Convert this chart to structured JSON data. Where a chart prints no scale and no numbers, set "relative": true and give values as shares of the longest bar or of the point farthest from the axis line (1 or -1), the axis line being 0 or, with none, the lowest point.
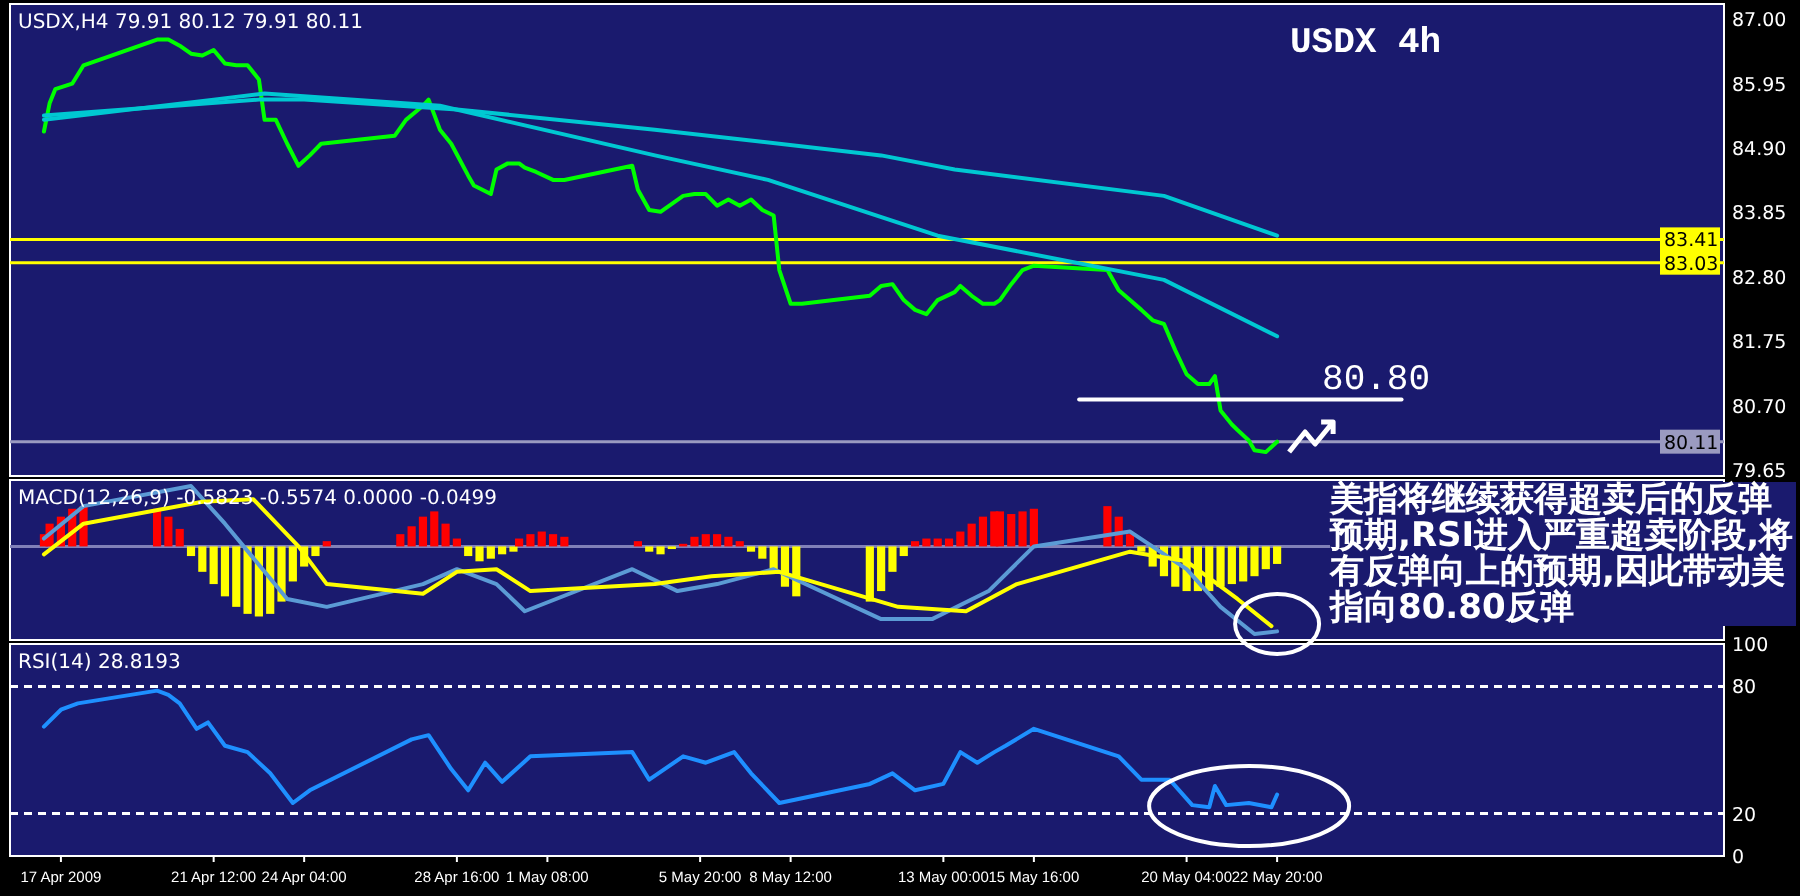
{
  "chart_data": [
    {
      "type": "line",
      "title": "USDX 4h",
      "tick_labels": "y",
      "xlim": [
        "2009-04-15T12:00",
        "2009-06-05T00:00"
      ],
      "ylim": [
        79.55,
        87.25
      ],
      "yticks": [
        {
          "value": 87,
          "label": "87.00"
        },
        {
          "value": 85.95,
          "label": "85.95"
        },
        {
          "value": 84.9,
          "label": "84.90"
        },
        {
          "value": 83.85,
          "label": "83.85"
        },
        {
          "value": 82.8,
          "label": "82.80"
        },
        {
          "value": 81.75,
          "label": "81.75"
        },
        {
          "value": 80.7,
          "label": "80.70"
        },
        {
          "value": 79.65,
          "label": "79.65"
        }
      ],
      "ref_lines": [
        {
          "axis": "y",
          "value": 83.41,
          "label": "83.41",
          "color": "#ffff00"
        },
        {
          "axis": "y",
          "value": 83.03,
          "label": "83.03",
          "color": "#ffff00"
        },
        {
          "axis": "y",
          "value": 80.11,
          "label": "80.11",
          "color": "#9a9ac0"
        }
      ],
      "series": [
        {
          "color": "#00ff00",
          "x": [
            "2009-04-16T12:00",
            "2009-04-16T16:00",
            "2009-04-16T20:00",
            "2009-04-17T08:00",
            "2009-04-17T16:00",
            "2009-04-19T20:00",
            "2009-04-20T04:00",
            "2009-04-20T12:00",
            "2009-04-20T20:00",
            "2009-04-21T04:00",
            "2009-04-21T12:00",
            "2009-04-21T20:00",
            "2009-04-22T04:00",
            "2009-04-22T12:00",
            "2009-04-22T20:00",
            "2009-04-23T00:00",
            "2009-04-23T08:00",
            "2009-04-23T16:00",
            "2009-04-24T00:00",
            "2009-04-24T08:00",
            "2009-04-24T16:00",
            "2009-04-26T20:00",
            "2009-04-27T04:00",
            "2009-04-27T16:00",
            "2009-04-27T20:00",
            "2009-04-28T04:00",
            "2009-04-28T12:00",
            "2009-04-29T00:00",
            "2009-04-29T04:00",
            "2009-04-29T16:00",
            "2009-04-29T20:00",
            "2009-04-30T04:00",
            "2009-04-30T12:00",
            "2009-04-30T16:00",
            "2009-05-01T00:00",
            "2009-05-01T12:00",
            "2009-05-01T20:00",
            "2009-05-03T20:00",
            "2009-05-04T00:00",
            "2009-05-04T08:00",
            "2009-05-04T16:00",
            "2009-05-05T00:00",
            "2009-05-05T08:00",
            "2009-05-05T16:00",
            "2009-05-06T00:00",
            "2009-05-06T08:00",
            "2009-05-06T16:00",
            "2009-05-07T00:00",
            "2009-05-07T08:00",
            "2009-05-07T16:00",
            "2009-05-08T00:00",
            "2009-05-08T04:00",
            "2009-05-08T12:00",
            "2009-05-08T20:00",
            "2009-05-10T20:00",
            "2009-05-11T04:00",
            "2009-05-11T12:00",
            "2009-05-11T20:00",
            "2009-05-12T04:00",
            "2009-05-12T12:00",
            "2009-05-12T20:00",
            "2009-05-13T08:00",
            "2009-05-13T12:00",
            "2009-05-13T20:00",
            "2009-05-14T04:00",
            "2009-05-14T12:00",
            "2009-05-14T16:00",
            "2009-05-15T00:00",
            "2009-05-15T08:00",
            "2009-05-15T16:00",
            "2009-05-17T20:00",
            "2009-05-18T04:00",
            "2009-05-18T12:00",
            "2009-05-18T20:00",
            "2009-05-19T04:00",
            "2009-05-19T12:00",
            "2009-05-19T20:00",
            "2009-05-20T04:00",
            "2009-05-20T12:00",
            "2009-05-20T20:00",
            "2009-05-21T00:00",
            "2009-05-21T04:00",
            "2009-05-21T12:00",
            "2009-05-21T16:00",
            "2009-05-22T00:00",
            "2009-05-22T04:00",
            "2009-05-22T12:00",
            "2009-05-22T20:00"
          ],
          "values": [
            85.17,
            85.63,
            85.86,
            85.95,
            86.25,
            86.67,
            86.67,
            86.57,
            86.44,
            86.41,
            86.5,
            86.28,
            86.25,
            86.25,
            86.02,
            85.36,
            85.36,
            84.97,
            84.61,
            84.78,
            84.97,
            85.1,
            85.36,
            85.59,
            85.69,
            85.2,
            84.97,
            84.45,
            84.29,
            84.15,
            84.55,
            84.65,
            84.65,
            84.58,
            84.51,
            84.38,
            84.38,
            84.61,
            84.22,
            83.89,
            83.86,
            83.99,
            84.12,
            84.15,
            84.15,
            83.96,
            84.06,
            83.96,
            84.06,
            83.89,
            83.8,
            82.91,
            82.36,
            82.36,
            82.49,
            82.65,
            82.68,
            82.42,
            82.26,
            82.19,
            82.42,
            82.55,
            82.65,
            82.49,
            82.36,
            82.36,
            82.42,
            82.68,
            82.91,
            82.98,
            82.91,
            82.58,
            82.42,
            82.26,
            82.09,
            82.03,
            81.6,
            81.21,
            81.05,
            81.05,
            81.18,
            80.62,
            80.39,
            80.3,
            80.13,
            79.97,
            79.94,
            80.11
          ]
        },
        {
          "color": "#00c8d2",
          "x": [
            "2009-04-16T12:00",
            "2009-04-22T20:00",
            "2009-04-24T04:00",
            "2009-04-28T16:00",
            "2009-05-04T12:00",
            "2009-05-11T04:00",
            "2009-05-13T08:00",
            "2009-05-19T12:00",
            "2009-05-22T20:00"
          ],
          "values": [
            85.43,
            85.69,
            85.69,
            85.53,
            85.2,
            84.78,
            84.55,
            84.12,
            83.47
          ]
        },
        {
          "color": "#00c8d2",
          "x": [
            "2009-04-16T12:00",
            "2009-04-21T12:00",
            "2009-04-23T00:00",
            "2009-04-28T04:00",
            "2009-05-04T12:00",
            "2009-05-07T20:00",
            "2009-05-12T20:00",
            "2009-05-19T12:00",
            "2009-05-22T20:00"
          ],
          "values": [
            85.36,
            85.69,
            85.79,
            85.59,
            84.78,
            84.38,
            83.47,
            82.75,
            81.83
          ]
        },
        {
          "color": "#ffffff",
          "x": [
            "2009-05-17T00:00",
            "2009-05-26T12:00"
          ],
          "values": [
            80.8,
            80.8
          ]
        }
      ],
      "annotations": [
        "USDX,H4  79.91 80.12 79.91 80.11",
        {
          "text": "80.80",
          "x": "2009-05-25T18:00",
          "y": 80.8
        },
        "美指将继续获得超卖后的反弹预期,RSI进入严重超卖阶段,将有反弹向上的预期,因此带动美指向80.80反弹"
      ]
    },
    {
      "type": "bar",
      "relative": true,
      "tick_labels": false,
      "ref_lines": [
        {
          "axis": "y",
          "value": 0,
          "color": "#8080b8"
        }
      ],
      "xlim": [
        "2009-04-15T12:00",
        "2009-06-05T00:00"
      ],
      "series": [
        {
          "x": [
            "2009-04-16T12:00",
            "2009-04-16T16:00",
            "2009-04-17T00:00",
            "2009-04-17T08:00",
            "2009-04-17T16:00",
            "2009-04-19T20:00",
            "2009-04-20T04:00",
            "2009-04-20T12:00",
            "2009-04-20T20:00",
            "2009-04-21T04:00",
            "2009-04-21T12:00",
            "2009-04-21T20:00",
            "2009-04-22T04:00",
            "2009-04-22T12:00",
            "2009-04-22T20:00",
            "2009-04-23T04:00",
            "2009-04-23T12:00",
            "2009-04-23T20:00",
            "2009-04-24T04:00",
            "2009-04-24T12:00",
            "2009-04-24T20:00",
            "2009-04-27T00:00",
            "2009-04-27T08:00",
            "2009-04-27T16:00",
            "2009-04-28T00:00",
            "2009-04-28T08:00",
            "2009-04-28T16:00",
            "2009-04-29T00:00",
            "2009-04-29T08:00",
            "2009-04-29T16:00",
            "2009-04-30T00:00",
            "2009-04-30T08:00",
            "2009-04-30T12:00",
            "2009-04-30T20:00",
            "2009-05-01T04:00",
            "2009-05-01T12:00",
            "2009-05-01T20:00",
            "2009-05-04T00:00",
            "2009-05-04T08:00",
            "2009-05-04T16:00",
            "2009-05-05T00:00",
            "2009-05-05T08:00",
            "2009-05-05T16:00",
            "2009-05-06T00:00",
            "2009-05-06T08:00",
            "2009-05-06T16:00",
            "2009-05-07T00:00",
            "2009-05-07T08:00",
            "2009-05-07T16:00",
            "2009-05-08T00:00",
            "2009-05-08T08:00",
            "2009-05-08T16:00",
            "2009-05-10T20:00",
            "2009-05-11T04:00",
            "2009-05-11T12:00",
            "2009-05-11T20:00",
            "2009-05-12T04:00",
            "2009-05-12T12:00",
            "2009-05-12T20:00",
            "2009-05-13T04:00",
            "2009-05-13T12:00",
            "2009-05-13T20:00",
            "2009-05-14T04:00",
            "2009-05-14T12:00",
            "2009-05-14T16:00",
            "2009-05-15T00:00",
            "2009-05-15T08:00",
            "2009-05-15T16:00",
            "2009-05-17T20:00",
            "2009-05-18T04:00",
            "2009-05-18T12:00",
            "2009-05-18T20:00",
            "2009-05-19T04:00",
            "2009-05-19T12:00",
            "2009-05-19T20:00",
            "2009-05-20T04:00",
            "2009-05-20T12:00",
            "2009-05-20T20:00",
            "2009-05-21T04:00",
            "2009-05-21T12:00",
            "2009-05-21T20:00",
            "2009-05-22T04:00",
            "2009-05-22T12:00",
            "2009-05-22T20:00"
          ],
          "values": [
            0.14,
            0.26,
            0.34,
            0.43,
            0.46,
            0.43,
            0.34,
            0.2,
            -0.11,
            -0.29,
            -0.43,
            -0.57,
            -0.69,
            -0.77,
            -0.8,
            -0.77,
            -0.63,
            -0.4,
            -0.23,
            -0.11,
            0.06,
            0.14,
            0.23,
            0.34,
            0.4,
            0.26,
            0.09,
            -0.11,
            -0.17,
            -0.14,
            -0.09,
            -0.06,
            0.09,
            0.14,
            0.17,
            0.14,
            0.11,
            0.06,
            -0.06,
            -0.09,
            -0.03,
            0.03,
            0.11,
            0.14,
            0.14,
            0.11,
            0.06,
            -0.06,
            -0.14,
            -0.29,
            -0.46,
            -0.57,
            -0.63,
            -0.51,
            -0.29,
            -0.11,
            0.06,
            0.09,
            0.09,
            0.09,
            0.17,
            0.26,
            0.34,
            0.4,
            0.4,
            0.37,
            0.4,
            0.43,
            0.46,
            0.34,
            0.14,
            -0.06,
            -0.23,
            -0.34,
            -0.46,
            -0.51,
            -0.51,
            -0.51,
            -0.46,
            -0.43,
            -0.4,
            -0.34,
            -0.26,
            -0.2
          ],
          "colors": [
            "#ff0000",
            "#ff0000",
            "#ff0000",
            "#ff0000",
            "#ff0000",
            "#ff0000",
            "#ff0000",
            "#ff0000",
            "#ffff00",
            "#ffff00",
            "#ffff00",
            "#ffff00",
            "#ffff00",
            "#ffff00",
            "#ffff00",
            "#ffff00",
            "#ffff00",
            "#ffff00",
            "#ffff00",
            "#ffff00",
            "#ff0000",
            "#ff0000",
            "#ff0000",
            "#ff0000",
            "#ff0000",
            "#ff0000",
            "#ff0000",
            "#ffff00",
            "#ffff00",
            "#ffff00",
            "#ffff00",
            "#ffff00",
            "#ff0000",
            "#ff0000",
            "#ff0000",
            "#ff0000",
            "#ff0000",
            "#ff0000",
            "#ffff00",
            "#ffff00",
            "#ffff00",
            "#ff0000",
            "#ff0000",
            "#ff0000",
            "#ff0000",
            "#ff0000",
            "#ff0000",
            "#ffff00",
            "#ffff00",
            "#ffff00",
            "#ffff00",
            "#ffff00",
            "#ffff00",
            "#ffff00",
            "#ffff00",
            "#ffff00",
            "#ff0000",
            "#ff0000",
            "#ff0000",
            "#ff0000",
            "#ff0000",
            "#ff0000",
            "#ff0000",
            "#ff0000",
            "#ff0000",
            "#ff0000",
            "#ff0000",
            "#ff0000",
            "#ff0000",
            "#ff0000",
            "#ff0000",
            "#ffff00",
            "#ffff00",
            "#ffff00",
            "#ffff00",
            "#ffff00",
            "#ffff00",
            "#ffff00",
            "#ffff00",
            "#ffff00",
            "#ffff00",
            "#ffff00",
            "#ffff00",
            "#ffff00"
          ]
        },
        {
          "type": "line",
          "color": "#5b9bd5",
          "x": [
            "2009-04-16T12:00",
            "2009-04-17T16:00",
            "2009-04-20T20:00",
            "2009-04-21T20:00",
            "2009-04-23T16:00",
            "2009-04-24T20:00",
            "2009-04-27T16:00",
            "2009-04-28T16:00",
            "2009-04-29T20:00",
            "2009-04-30T16:00",
            "2009-05-03T20:00",
            "2009-05-05T04:00",
            "2009-05-06T08:00",
            "2009-05-08T00:00",
            "2009-05-11T04:00",
            "2009-05-12T16:00",
            "2009-05-14T08:00",
            "2009-05-15T16:00",
            "2009-05-18T12:00",
            "2009-05-20T04:00",
            "2009-05-21T04:00",
            "2009-05-22T04:00",
            "2009-05-22T20:00"
          ],
          "values": [
            0.09,
            0.46,
            0.69,
            0.26,
            -0.6,
            -0.69,
            -0.43,
            -0.26,
            -0.43,
            -0.74,
            -0.26,
            -0.51,
            -0.43,
            -0.26,
            -0.83,
            -0.83,
            -0.51,
            0,
            0.17,
            -0.26,
            -0.69,
            -1,
            -0.97
          ]
        },
        {
          "type": "line",
          "color": "#ffff00",
          "x": [
            "2009-04-16T12:00",
            "2009-04-17T16:00",
            "2009-04-21T04:00",
            "2009-04-22T16:00",
            "2009-04-24T00:00",
            "2009-04-24T20:00",
            "2009-04-27T16:00",
            "2009-04-28T16:00",
            "2009-04-29T20:00",
            "2009-04-30T20:00",
            "2009-05-04T12:00",
            "2009-05-06T04:00",
            "2009-05-08T04:00",
            "2009-05-11T16:00",
            "2009-05-13T16:00",
            "2009-05-15T04:00",
            "2009-05-18T12:00",
            "2009-05-20T04:00",
            "2009-05-21T16:00",
            "2009-05-22T16:00"
          ],
          "values": [
            -0.09,
            0.26,
            0.51,
            0.54,
            0,
            -0.43,
            -0.54,
            -0.29,
            -0.26,
            -0.51,
            -0.43,
            -0.34,
            -0.29,
            -0.69,
            -0.74,
            -0.43,
            -0.06,
            -0.17,
            -0.6,
            -0.91
          ]
        }
      ],
      "annotations": [
        "MACD(12,26,9) -0.5823 -0.5574 0.0000 -0.0499"
      ]
    },
    {
      "type": "line",
      "xlim": [
        "2009-04-15T12:00",
        "2009-06-05T00:00"
      ],
      "ylim": [
        0,
        100
      ],
      "yticks": [
        0,
        20,
        80,
        100
      ],
      "xticks": [
        {
          "value": "2009-04-17T00:00",
          "label": "17 Apr 2009"
        },
        {
          "value": "2009-04-21T12:00",
          "label": "21 Apr 12:00"
        },
        {
          "value": "2009-04-24T04:00",
          "label": "24 Apr 04:00"
        },
        {
          "value": "2009-04-28T16:00",
          "label": "28 Apr 16:00"
        },
        {
          "value": "2009-05-01T08:00",
          "label": "1 May 08:00"
        },
        {
          "value": "2009-05-05T20:00",
          "label": "5 May 20:00"
        },
        {
          "value": "2009-05-08T12:00",
          "label": "8 May 12:00"
        },
        {
          "value": "2009-05-13T00:00",
          "label": "13 May 00:00"
        },
        {
          "value": "2009-05-15T16:00",
          "label": "15 May 16:00"
        },
        {
          "value": "2009-05-20T04:00",
          "label": "20 May 04:00"
        },
        {
          "value": "2009-05-22T20:00",
          "label": "22 May 20:00"
        }
      ],
      "ref_lines": [
        {
          "axis": "y",
          "value": 80,
          "color": "#ffffff",
          "line_style": "dashed"
        },
        {
          "axis": "y",
          "value": 20,
          "color": "#ffffff",
          "line_style": "dashed"
        }
      ],
      "series": [
        {
          "color": "#1e90ff",
          "x": [
            "2009-04-16T12:00",
            "2009-04-17T00:00",
            "2009-04-17T12:00",
            "2009-04-19T20:00",
            "2009-04-20T04:00",
            "2009-04-20T12:00",
            "2009-04-21T00:00",
            "2009-04-21T08:00",
            "2009-04-21T20:00",
            "2009-04-22T12:00",
            "2009-04-23T04:00",
            "2009-04-23T20:00",
            "2009-04-24T08:00",
            "2009-04-27T08:00",
            "2009-04-27T20:00",
            "2009-04-28T12:00",
            "2009-04-29T00:00",
            "2009-04-29T12:00",
            "2009-04-30T00:00",
            "2009-04-30T20:00",
            "2009-05-03T20:00",
            "2009-05-04T08:00",
            "2009-05-05T08:00",
            "2009-05-06T00:00",
            "2009-05-06T20:00",
            "2009-05-07T08:00",
            "2009-05-08T04:00",
            "2009-05-10T20:00",
            "2009-05-11T12:00",
            "2009-05-12T04:00",
            "2009-05-13T00:00",
            "2009-05-13T12:00",
            "2009-05-14T00:00",
            "2009-05-14T12:00",
            "2009-05-14T20:00",
            "2009-05-15T16:00",
            "2009-05-18T04:00",
            "2009-05-18T20:00",
            "2009-05-19T16:00",
            "2009-05-20T08:00",
            "2009-05-20T20:00",
            "2009-05-21T00:00",
            "2009-05-21T08:00",
            "2009-05-22T00:00",
            "2009-05-22T16:00",
            "2009-05-22T20:00"
          ],
          "values": [
            61,
            69,
            72,
            78,
            76,
            72,
            60,
            63,
            52,
            49,
            39,
            25,
            31,
            55,
            57,
            41,
            31,
            44,
            35,
            47,
            49,
            36,
            47,
            44,
            49,
            39,
            25,
            34,
            39,
            31,
            34,
            49,
            44,
            49,
            52,
            60,
            47,
            36,
            36,
            24,
            23,
            33,
            24,
            25,
            23,
            29
          ]
        }
      ],
      "annotations": [
        "RSI(14) 28.8193"
      ]
    }
  ]
}
